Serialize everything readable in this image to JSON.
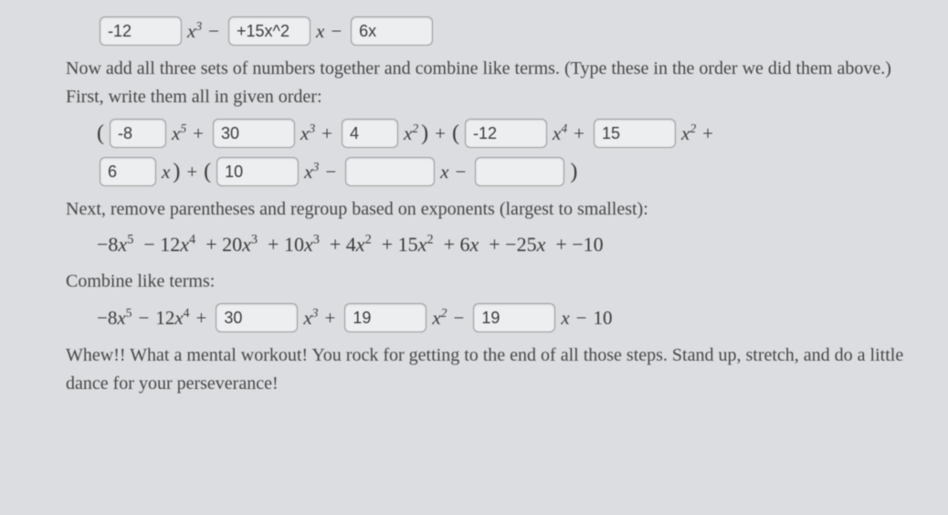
{
  "row0": {
    "b1": "-12",
    "b2": "+15x^2",
    "b3": "6x"
  },
  "text1": "Now add all three sets of numbers together and combine like terms. (Type these in the order we did them above.) First, write them all in given order:",
  "rowA": {
    "b1": "-8",
    "b2": "30",
    "b3": "4",
    "b4": "-12",
    "b5": "15",
    "b6": "6",
    "b7": "10",
    "b8": "",
    "b9": ""
  },
  "text2": "Next, remove parentheses and regroup based on exponents (largest to smallest):",
  "expanded": "−8x⁵ − 12x⁴ + 20x³ + 10x³ + 4x² + 15x² + 6x + −25x + −10",
  "text3": "Combine like terms:",
  "rowC": {
    "b1": "30",
    "b2": "19",
    "b3": "19"
  },
  "text4": "Whew!! What a mental workout! You rock for getting to the end of all those steps. Stand up, stretch, and do a little dance for your perseverance!"
}
